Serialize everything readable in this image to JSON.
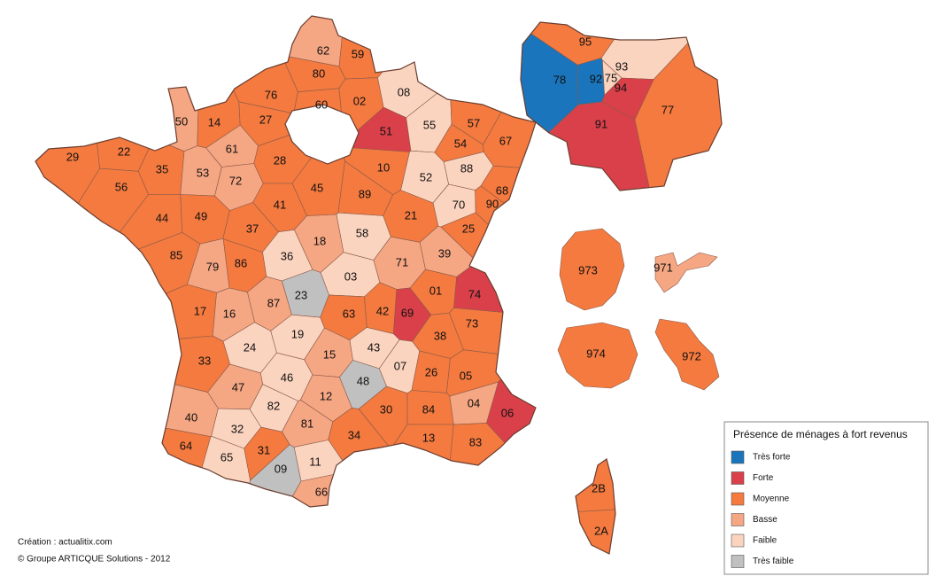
{
  "map": {
    "mainland": [
      {
        "code": "62",
        "color": "#f5a683"
      },
      {
        "code": "59",
        "color": "#f47a3f"
      },
      {
        "code": "80",
        "color": "#f47a3f"
      },
      {
        "code": "76",
        "color": "#f47a3f"
      },
      {
        "code": "02",
        "color": "#f47a3f"
      },
      {
        "code": "08",
        "color": "#fbd4c0"
      },
      {
        "code": "60",
        "color": "#f47a3f"
      },
      {
        "code": "50",
        "color": "#f5a683"
      },
      {
        "code": "14",
        "color": "#f47a3f"
      },
      {
        "code": "27",
        "color": "#f47a3f"
      },
      {
        "code": "51",
        "color": "#d9404a"
      },
      {
        "code": "55",
        "color": "#fbd4c0"
      },
      {
        "code": "57",
        "color": "#f47a3f"
      },
      {
        "code": "67",
        "color": "#f47a3f"
      },
      {
        "code": "54",
        "color": "#f47a3f"
      },
      {
        "code": "29",
        "color": "#f47a3f"
      },
      {
        "code": "22",
        "color": "#f47a3f"
      },
      {
        "code": "35",
        "color": "#f47a3f"
      },
      {
        "code": "61",
        "color": "#f5a683"
      },
      {
        "code": "53",
        "color": "#f5a683"
      },
      {
        "code": "72",
        "color": "#f5a683"
      },
      {
        "code": "28",
        "color": "#f47a3f"
      },
      {
        "code": "10",
        "color": "#f47a3f"
      },
      {
        "code": "88",
        "color": "#fbd4c0"
      },
      {
        "code": "52",
        "color": "#fbd4c0"
      },
      {
        "code": "56",
        "color": "#f47a3f"
      },
      {
        "code": "45",
        "color": "#f47a3f"
      },
      {
        "code": "89",
        "color": "#f47a3f"
      },
      {
        "code": "68",
        "color": "#f47a3f"
      },
      {
        "code": "70",
        "color": "#fbd4c0"
      },
      {
        "code": "90",
        "color": "#f47a3f"
      },
      {
        "code": "44",
        "color": "#f47a3f"
      },
      {
        "code": "49",
        "color": "#f47a3f"
      },
      {
        "code": "41",
        "color": "#f47a3f"
      },
      {
        "code": "37",
        "color": "#f47a3f"
      },
      {
        "code": "21",
        "color": "#f47a3f"
      },
      {
        "code": "25",
        "color": "#f47a3f"
      },
      {
        "code": "18",
        "color": "#f5a683"
      },
      {
        "code": "58",
        "color": "#fbd4c0"
      },
      {
        "code": "36",
        "color": "#fbd4c0"
      },
      {
        "code": "71",
        "color": "#f5a683"
      },
      {
        "code": "39",
        "color": "#f5a683"
      },
      {
        "code": "85",
        "color": "#f47a3f"
      },
      {
        "code": "79",
        "color": "#f5a683"
      },
      {
        "code": "86",
        "color": "#f47a3f"
      },
      {
        "code": "03",
        "color": "#fbd4c0"
      },
      {
        "code": "01",
        "color": "#f47a3f"
      },
      {
        "code": "74",
        "color": "#d9404a"
      },
      {
        "code": "23",
        "color": "#c0c0c0"
      },
      {
        "code": "87",
        "color": "#f5a683"
      },
      {
        "code": "17",
        "color": "#f47a3f"
      },
      {
        "code": "16",
        "color": "#f5a683"
      },
      {
        "code": "63",
        "color": "#f47a3f"
      },
      {
        "code": "42",
        "color": "#f47a3f"
      },
      {
        "code": "69",
        "color": "#d9404a"
      },
      {
        "code": "73",
        "color": "#f47a3f"
      },
      {
        "code": "19",
        "color": "#fbd4c0"
      },
      {
        "code": "24",
        "color": "#fbd4c0"
      },
      {
        "code": "43",
        "color": "#fbd4c0"
      },
      {
        "code": "38",
        "color": "#f47a3f"
      },
      {
        "code": "15",
        "color": "#f5a683"
      },
      {
        "code": "07",
        "color": "#fbd4c0"
      },
      {
        "code": "33",
        "color": "#f47a3f"
      },
      {
        "code": "46",
        "color": "#fbd4c0"
      },
      {
        "code": "48",
        "color": "#c0c0c0"
      },
      {
        "code": "26",
        "color": "#f47a3f"
      },
      {
        "code": "05",
        "color": "#f47a3f"
      },
      {
        "code": "47",
        "color": "#f5a683"
      },
      {
        "code": "12",
        "color": "#f5a683"
      },
      {
        "code": "04",
        "color": "#f5a683"
      },
      {
        "code": "06",
        "color": "#d9404a"
      },
      {
        "code": "82",
        "color": "#fbd4c0"
      },
      {
        "code": "30",
        "color": "#f47a3f"
      },
      {
        "code": "84",
        "color": "#f47a3f"
      },
      {
        "code": "40",
        "color": "#f5a683"
      },
      {
        "code": "81",
        "color": "#f5a683"
      },
      {
        "code": "32",
        "color": "#fbd4c0"
      },
      {
        "code": "34",
        "color": "#f47a3f"
      },
      {
        "code": "13",
        "color": "#f47a3f"
      },
      {
        "code": "83",
        "color": "#f47a3f"
      },
      {
        "code": "64",
        "color": "#f47a3f"
      },
      {
        "code": "31",
        "color": "#f47a3f"
      },
      {
        "code": "65",
        "color": "#fbd4c0"
      },
      {
        "code": "11",
        "color": "#fbd4c0"
      },
      {
        "code": "09",
        "color": "#c0c0c0"
      },
      {
        "code": "66",
        "color": "#f5a683"
      }
    ],
    "ile_de_france": [
      {
        "code": "95",
        "color": "#f47a3f"
      },
      {
        "code": "93",
        "color": "#fbd4c0"
      },
      {
        "code": "75",
        "color": "#fbd4c0"
      },
      {
        "code": "78",
        "color": "#1a75bc"
      },
      {
        "code": "92",
        "color": "#1a75bc"
      },
      {
        "code": "94",
        "color": "#d9404a"
      },
      {
        "code": "91",
        "color": "#d9404a"
      },
      {
        "code": "77",
        "color": "#f47a3f"
      }
    ],
    "corsica": [
      {
        "code": "2B",
        "color": "#f47a3f"
      },
      {
        "code": "2A",
        "color": "#f47a3f"
      }
    ],
    "overseas": [
      {
        "code": "973",
        "color": "#f47a3f"
      },
      {
        "code": "971",
        "color": "#f5a683"
      },
      {
        "code": "974",
        "color": "#f47a3f"
      },
      {
        "code": "972",
        "color": "#f47a3f"
      }
    ]
  },
  "legend": {
    "title": "Présence de ménages à fort revenus",
    "items": [
      {
        "label": "Très forte",
        "color": "#1a75bc"
      },
      {
        "label": "Forte",
        "color": "#d9404a"
      },
      {
        "label": "Moyenne",
        "color": "#f47a3f"
      },
      {
        "label": "Basse",
        "color": "#f5a683"
      },
      {
        "label": "Faible",
        "color": "#fbd4c0"
      },
      {
        "label": "Très faible",
        "color": "#c0c0c0"
      }
    ]
  },
  "credits": {
    "creation": "Création : actualitix.com",
    "copyright": "© Groupe ARTICQUE Solutions - 2012"
  }
}
